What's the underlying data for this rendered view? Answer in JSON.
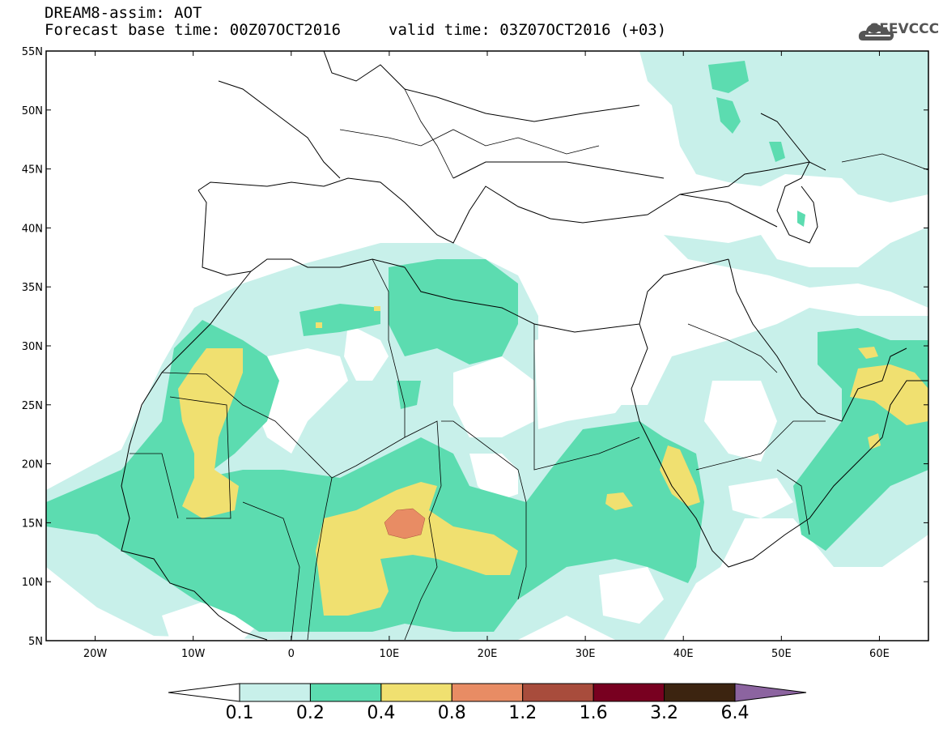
{
  "header": {
    "title": "DREAM8-assim: AOT",
    "base_time": "Forecast base time: 00Z07OCT2016",
    "valid_time": "valid time: 03Z07OCT2016 (+03)"
  },
  "logo": {
    "text": "SEEVCCC",
    "icon": "cloud-icon",
    "color": "#555555"
  },
  "map": {
    "lon_range": [
      -25,
      65
    ],
    "lat_range": [
      5,
      55
    ],
    "lat_ticks": [
      "5N",
      "10N",
      "15N",
      "20N",
      "25N",
      "30N",
      "35N",
      "40N",
      "45N",
      "50N",
      "55N"
    ],
    "lon_ticks": [
      "20W",
      "10W",
      "0",
      "10E",
      "20E",
      "30E",
      "40E",
      "50E",
      "60E"
    ]
  },
  "colorbar": {
    "labels": [
      "0.1",
      "0.2",
      "0.4",
      "0.8",
      "1.2",
      "1.6",
      "3.2",
      "6.4"
    ],
    "colors": [
      "#ffffff",
      "#c8f0ea",
      "#5cdcb0",
      "#f0e070",
      "#e88c64",
      "#a84c3c",
      "#780020",
      "#3c2410",
      "#8c64a0"
    ]
  }
}
